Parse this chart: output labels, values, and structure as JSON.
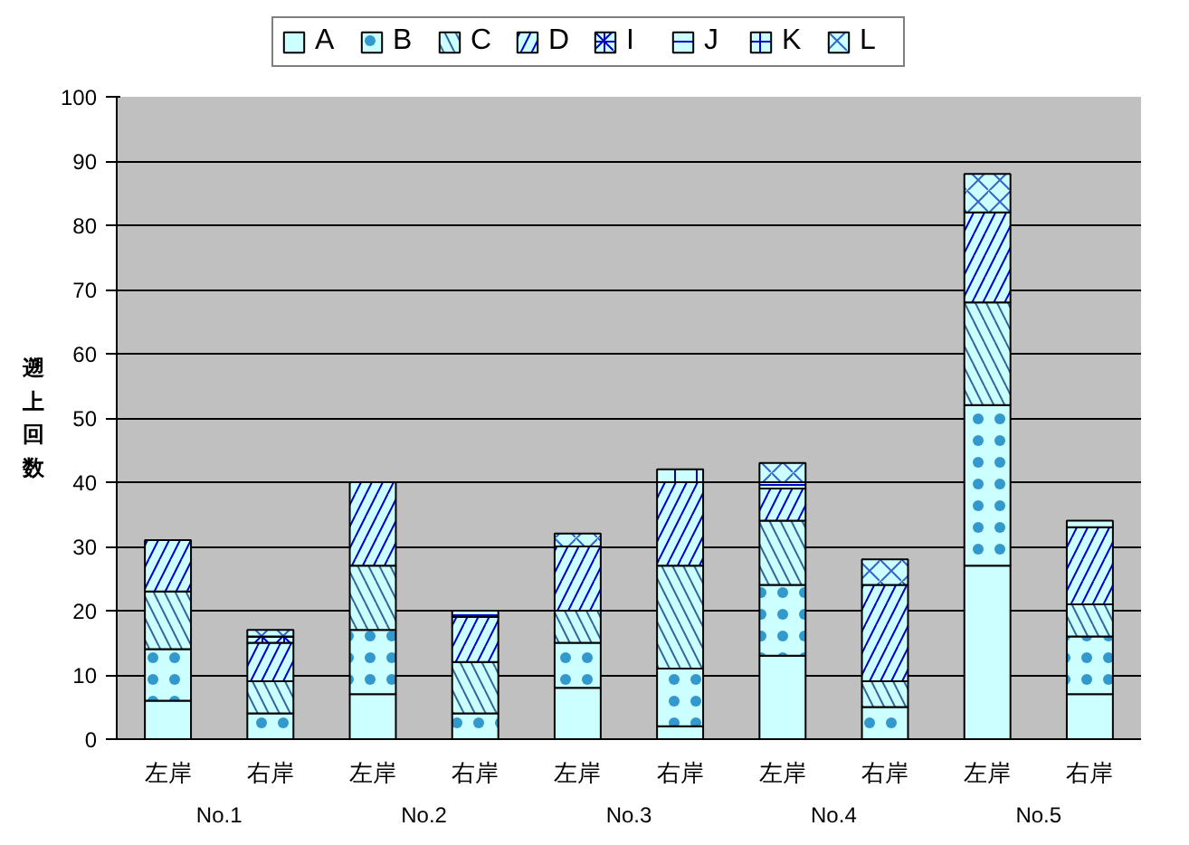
{
  "chart_data": {
    "type": "bar",
    "stacked": true,
    "ylabel": "遡上回数",
    "categories": [
      "左岸",
      "右岸",
      "左岸",
      "右岸",
      "左岸",
      "右岸",
      "左岸",
      "右岸",
      "左岸",
      "右岸"
    ],
    "annotations": [
      "No.1",
      "No.2",
      "No.3",
      "No.4",
      "No.5"
    ],
    "series": [
      {
        "name": "A",
        "color": "#ccffff",
        "values": [
          6,
          0,
          7,
          0,
          8,
          2,
          13,
          0,
          27,
          7
        ]
      },
      {
        "name": "B",
        "color": "#ccffff",
        "values": [
          8,
          4,
          10,
          4,
          7,
          9,
          11,
          5,
          25,
          9
        ]
      },
      {
        "name": "C",
        "color": "#ccffff",
        "values": [
          9,
          5,
          10,
          8,
          5,
          16,
          10,
          4,
          16,
          5
        ]
      },
      {
        "name": "D",
        "color": "#ccffff",
        "values": [
          8,
          6,
          13,
          7,
          10,
          13,
          5,
          15,
          14,
          12
        ]
      },
      {
        "name": "I",
        "color": "#ccffff",
        "values": [
          0,
          1,
          0,
          0,
          0,
          0,
          0,
          0,
          0,
          0
        ]
      },
      {
        "name": "J",
        "color": "#ccffff",
        "values": [
          0,
          0,
          0,
          1,
          0,
          0,
          1,
          0,
          0,
          1
        ]
      },
      {
        "name": "K",
        "color": "#ccffff",
        "values": [
          0,
          0,
          0,
          0,
          0,
          2,
          0,
          0,
          0,
          0
        ]
      },
      {
        "name": "L",
        "color": "#ccffff",
        "values": [
          0,
          1,
          0,
          0,
          2,
          0,
          3,
          4,
          6,
          0
        ]
      }
    ],
    "ylim": [
      0,
      100
    ],
    "yticks": [
      0,
      10,
      20,
      30,
      40,
      50,
      60,
      70,
      80,
      90,
      100
    ],
    "grid": "y",
    "legend": "top"
  }
}
